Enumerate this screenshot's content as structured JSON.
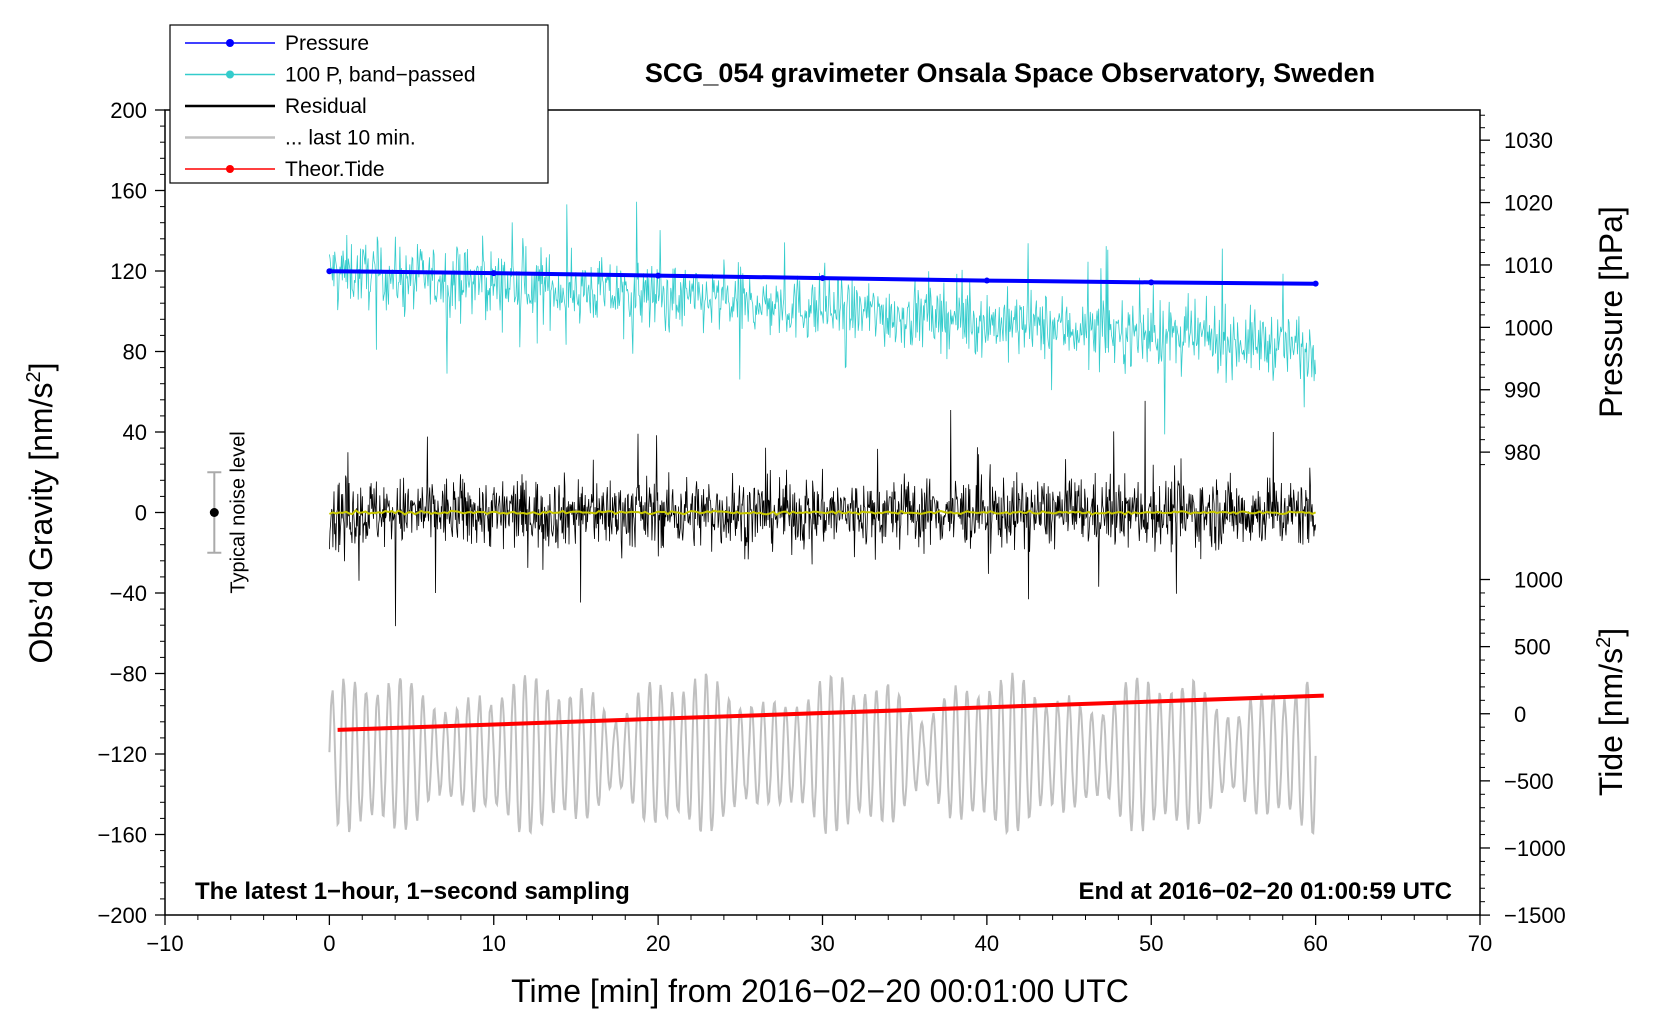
{
  "chart_data": {
    "type": "line",
    "title": "SCG_054 gravimeter Onsala Space Observatory, Sweden",
    "xlabel": "Time [min] from 2016−02−20 00:01:00 UTC",
    "ylabel_left_main": "Obs’d Gravity [nm/s",
    "ylabel_left_sup": "2",
    "ylabel_left_end": "]",
    "ylabel_right_pressure": "Pressure [hPa]",
    "ylabel_right_tide_main": "Tide [nm/s",
    "ylabel_right_tide_sup": "2",
    "ylabel_right_tide_end": "]",
    "xlim": [
      -10,
      70
    ],
    "ylim": [
      -200,
      200
    ],
    "x_ticks": [
      "−10",
      "0",
      "10",
      "20",
      "30",
      "40",
      "50",
      "60",
      "70"
    ],
    "x_tick_values": [
      -10,
      0,
      10,
      20,
      30,
      40,
      50,
      60,
      70
    ],
    "y_ticks": [
      "200",
      "160",
      "120",
      "80",
      "40",
      "0",
      "−40",
      "−80",
      "−120",
      "−160",
      "−200"
    ],
    "y_tick_values": [
      200,
      160,
      120,
      80,
      40,
      0,
      -40,
      -80,
      -120,
      -160,
      -200
    ],
    "pressure_axis": {
      "ticks": [
        "1030",
        "1020",
        "1010",
        "1000",
        "990",
        "980"
      ],
      "tick_values": [
        1030,
        1020,
        1010,
        1000,
        990,
        980
      ],
      "gravity_at_1030": 185,
      "gravity_per_hpa": 3.1
    },
    "tide_axis": {
      "ticks": [
        "1000",
        "500",
        "0",
        "−500",
        "−1000",
        "−1500"
      ],
      "tick_values": [
        1000,
        500,
        0,
        -500,
        -1000,
        -1500
      ],
      "gravity_at_0": -100,
      "gravity_per_unit": 0.0667
    },
    "series": [
      {
        "name": "Pressure",
        "color": "#0000ff",
        "axis": "pressure",
        "x": [
          0,
          10,
          20,
          30,
          40,
          50,
          60
        ],
        "values": [
          1009.0,
          1008.7,
          1008.3,
          1007.9,
          1007.5,
          1007.2,
          1007.0
        ]
      },
      {
        "name": "100 P, band−passed",
        "color": "#33cccc",
        "axis": "gravity",
        "x_range": [
          0,
          60
        ],
        "center_start": 120,
        "center_end": 82,
        "amplitude_approx": 40
      },
      {
        "name": "Residual",
        "color": "#000000",
        "axis": "gravity",
        "x_range": [
          0,
          60
        ],
        "center": 0,
        "amplitude_approx": 40
      },
      {
        "name": "... last 10 min.",
        "color": "#c0c0c0",
        "axis": "gravity",
        "x_range": [
          0,
          60
        ],
        "center": -120,
        "amplitude_approx": 35
      },
      {
        "name": "Theor.Tide",
        "color": "#ff0000",
        "axis": "tide",
        "x": [
          0.5,
          60.5
        ],
        "values": [
          -120,
          135
        ]
      }
    ],
    "smoothed_residual_color": "#c8c800",
    "noise_bar": {
      "label": "Typical noise level",
      "x": -7,
      "center": 0,
      "half_range": 20
    },
    "note_left": "The latest 1−hour, 1−second sampling",
    "note_right": "End at 2016−02−20 01:00:59 UTC",
    "legend_position": "top-left"
  }
}
